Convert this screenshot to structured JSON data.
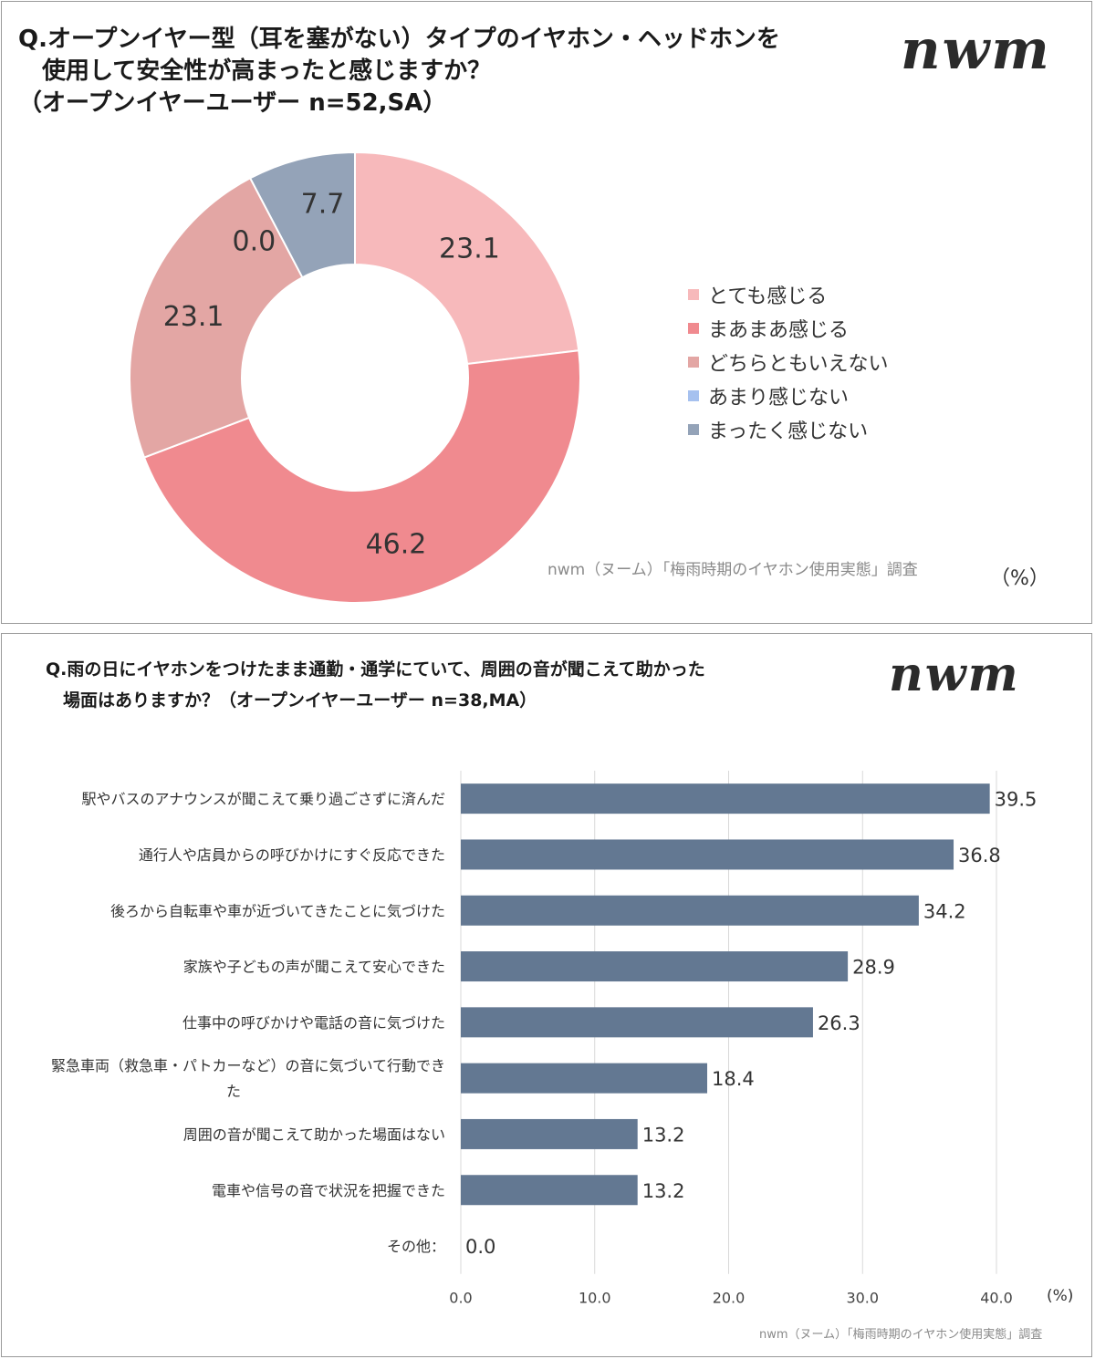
{
  "panel1": {
    "title_lines": [
      "Q.オープンイヤー型（耳を塞がない）タイプのイヤホン・ヘッドホンを",
      "　使用して安全性が高まったと感じますか？",
      "（オープンイヤーユーザー n=52,SA）"
    ],
    "logo": "nwm",
    "source": "nwm（ヌーム）「梅雨時期のイヤホン使用実態」調査",
    "unit": "（%）"
  },
  "panel2": {
    "title_lines": [
      "Q.雨の日にイヤホンをつけたまま通勤・通学にていて、周囲の音が聞こえて助かった",
      "　場面はありますか？（オープンイヤーユーザー n=38,MA）"
    ],
    "logo": "nwm",
    "source": "nwm（ヌーム）「梅雨時期のイヤホン使用実態」調査",
    "unit": "(%)"
  },
  "chart_data": [
    {
      "type": "pie",
      "donut": true,
      "categories": [
        "とても感じる",
        "まあまあ感じる",
        "どちらともいえない",
        "あまり感じない",
        "まったく感じない"
      ],
      "values": [
        23.1,
        46.2,
        23.1,
        0.0,
        7.7
      ],
      "value_labels": [
        "23.1",
        "46.2",
        "23.1",
        "0.0",
        "7.7"
      ],
      "colors": [
        "#f7b9bb",
        "#f08a8f",
        "#e3a6a4",
        "#a6c1ef",
        "#94a3b8"
      ],
      "legend_position": "right"
    },
    {
      "type": "bar",
      "orientation": "horizontal",
      "categories": [
        "駅やバスのアナウンスが聞こえて乗り過ごさずに済んだ",
        "通行人や店員からの呼びかけにすぐ反応できた",
        "後ろから自転車や車が近づいてきたことに気づけた",
        "家族や子どもの声が聞こえて安心できた",
        "仕事中の呼びかけや電話の音に気づけた",
        [
          "緊急車両（救急車・パトカーなど）の音に気づいて行動でき",
          "た"
        ],
        "周囲の音が聞こえて助かった場面はない",
        "電車や信号の音で状況を把握できた",
        "その他："
      ],
      "values": [
        39.5,
        36.8,
        34.2,
        28.9,
        26.3,
        18.4,
        13.2,
        13.2,
        0.0
      ],
      "value_labels": [
        "39.5",
        "36.8",
        "34.2",
        "28.9",
        "26.3",
        "18.4",
        "13.2",
        "13.2",
        "0.0"
      ],
      "xlim": [
        0,
        40
      ],
      "x_ticks": [
        "0.0",
        "10.0",
        "20.0",
        "30.0",
        "40.0"
      ],
      "bar_color": "#637892",
      "grid": true
    }
  ]
}
